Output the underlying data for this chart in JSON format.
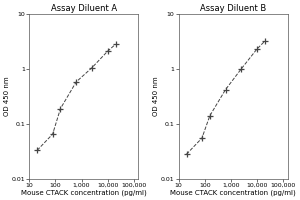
{
  "title_left": "Assay Diluent A",
  "title_right": "Assay Diluent B",
  "xlabel": "Mouse CTACK concentration (pg/ml)",
  "ylabel": "OD 450 nm",
  "panel_left": {
    "x": [
      20,
      78,
      156,
      625,
      2500,
      10000,
      20000
    ],
    "y": [
      0.033,
      0.065,
      0.19,
      0.58,
      1.05,
      2.1,
      2.8
    ]
  },
  "panel_right": {
    "x": [
      20,
      78,
      156,
      625,
      2500,
      10000,
      20000
    ],
    "y": [
      0.028,
      0.055,
      0.14,
      0.42,
      1.0,
      2.3,
      3.2
    ]
  },
  "xlim": [
    10,
    150000
  ],
  "ylim": [
    0.01,
    10
  ],
  "xticks": [
    10,
    100,
    1000,
    10000,
    100000
  ],
  "xtick_labels": [
    "10",
    "100",
    "1,000",
    "10,000",
    "100,000"
  ],
  "yticks": [
    0.01,
    0.1,
    1,
    10
  ],
  "ytick_labels": [
    "0.01",
    "0.1",
    "1",
    "10"
  ],
  "line_color": "#444444",
  "marker": "+",
  "markersize": 4,
  "markeredgewidth": 0.9,
  "linewidth": 0.7,
  "linestyle": "--",
  "title_fontsize": 6,
  "label_fontsize": 5,
  "tick_fontsize": 4.5
}
